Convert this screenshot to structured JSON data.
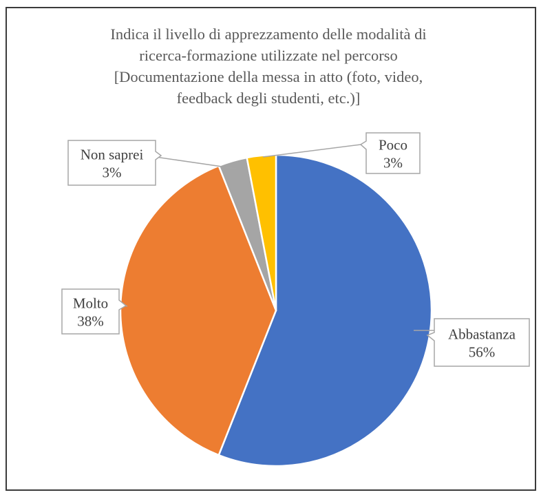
{
  "chart_data": {
    "type": "pie",
    "title_lines": [
      "Indica il livello di apprezzamento delle modalità di",
      "ricerca-formazione utilizzate nel percorso",
      "[Documentazione della messa in atto (foto, video,",
      "feedback degli studenti, etc.)]"
    ],
    "slices": [
      {
        "label": "Abbastanza",
        "percent_label": "56%",
        "value": 56,
        "color": "#4472C4"
      },
      {
        "label": "Molto",
        "percent_label": "38%",
        "value": 38,
        "color": "#ED7D31"
      },
      {
        "label": "Non saprei",
        "percent_label": "3%",
        "value": 3,
        "color": "#A5A5A5"
      },
      {
        "label": "Poco",
        "percent_label": "3%",
        "value": 3,
        "color": "#FFC000"
      }
    ],
    "legend": false,
    "data_labels": "callouts"
  }
}
